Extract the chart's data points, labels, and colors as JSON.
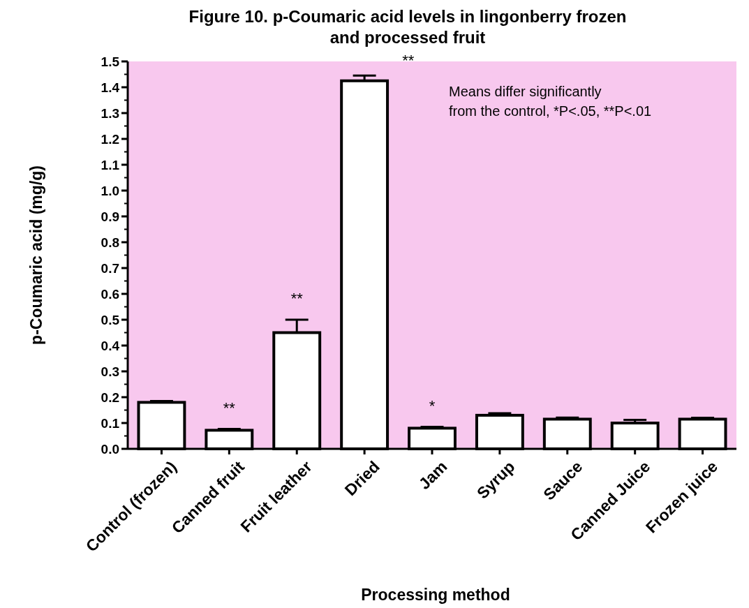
{
  "chart_data": {
    "type": "bar",
    "title": "Figure 10. p-Coumaric acid levels in lingonberry frozen and processed fruit",
    "xlabel": "Processing method",
    "ylabel": "p-Coumaric acid (mg/g)",
    "categories": [
      "Control (frozen)",
      "Canned fruit",
      "Fruit leather",
      "Dried",
      "Jam",
      "Syrup",
      "Sauce",
      "Canned Juice",
      "Frozen juice"
    ],
    "values": [
      0.18,
      0.072,
      0.45,
      1.425,
      0.08,
      0.13,
      0.115,
      0.1,
      0.115
    ],
    "errors": [
      0.005,
      0.005,
      0.05,
      0.02,
      0.005,
      0.008,
      0.006,
      0.012,
      0.005
    ],
    "color": "#ffffff",
    "ylim": [
      0,
      1.5
    ],
    "yticks": [
      {
        "value": 0,
        "label": "0.0"
      },
      0.1,
      0.2,
      0.3,
      0.4,
      0.5,
      0.6,
      0.7,
      0.8,
      0.9,
      {
        "value": 1,
        "label": "1.0"
      },
      1.1,
      1.2,
      1.3,
      1.4,
      1.5
    ],
    "grid": false,
    "annotations": [
      {
        "text": "**",
        "x": "Canned fruit",
        "y": 0.077
      },
      {
        "text": "**",
        "x": "Fruit leather",
        "y": 0.5
      },
      {
        "text": "**",
        "x": "Dried",
        "y": 1.445
      },
      {
        "text": "*",
        "x": "Jam",
        "y": 0.084
      },
      "Means differ significantly\nfrom the control, *P<.05, **P<.01"
    ]
  }
}
